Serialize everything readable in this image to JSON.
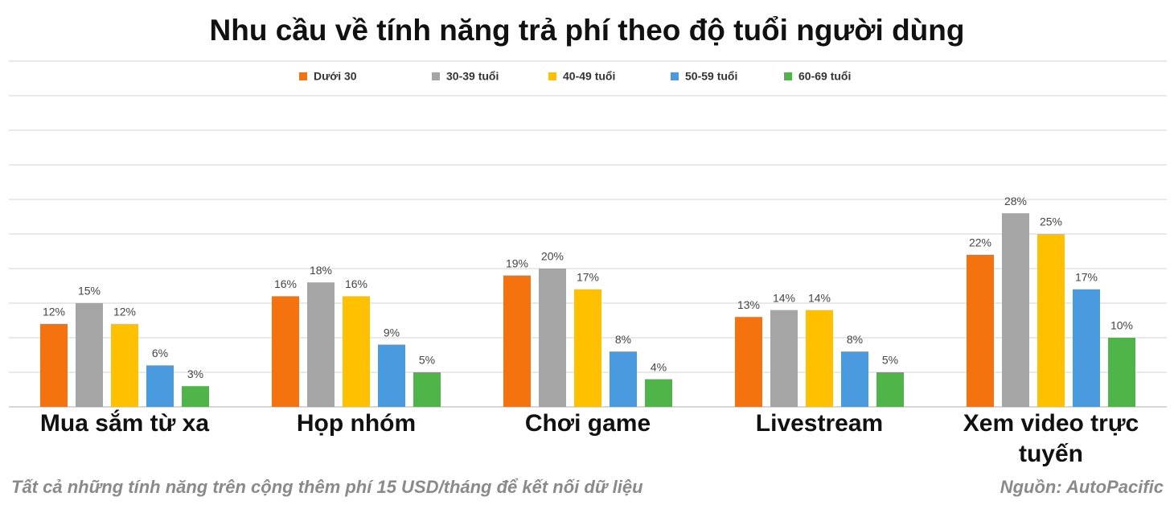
{
  "chart_data": {
    "type": "bar",
    "title": "Nhu cầu về tính năng trả phí theo độ tuổi người dùng",
    "categories": [
      "Mua sắm từ xa",
      "Họp nhóm",
      "Chơi game",
      "Livestream",
      "Xem video trực tuyến"
    ],
    "series": [
      {
        "name": "Dưới 30",
        "color": "#f4730f",
        "values": [
          12,
          16,
          19,
          13,
          22
        ],
        "value_labels": [
          "12%",
          "16%",
          "19%",
          "13%",
          "22%"
        ]
      },
      {
        "name": "30-39 tuổi",
        "color": "#a5a5a5",
        "values": [
          15,
          18,
          20,
          14,
          28
        ],
        "value_labels": [
          "15%",
          "18%",
          "20%",
          "14%",
          "28%"
        ]
      },
      {
        "name": "40-49 tuổi",
        "color": "#ffc000",
        "values": [
          12,
          16,
          17,
          14,
          25
        ],
        "value_labels": [
          "12%",
          "16%",
          "17%",
          "14%",
          "25%"
        ]
      },
      {
        "name": "50-59 tuổi",
        "color": "#4a9ae0",
        "values": [
          6,
          9,
          8,
          8,
          17
        ],
        "value_labels": [
          "6%",
          "9%",
          "8%",
          "8%",
          "17%"
        ]
      },
      {
        "name": "60-69 tuổi",
        "color": "#4fb548",
        "values": [
          3,
          5,
          4,
          5,
          10
        ],
        "value_labels": [
          "3%",
          "5%",
          "4%",
          "5%",
          "10%"
        ]
      }
    ],
    "ylim": [
      0,
      50
    ],
    "yticks": [
      0,
      5,
      10,
      15,
      20,
      25,
      30,
      35,
      40,
      45,
      50
    ],
    "grid": true,
    "legend": "top",
    "footnote": "Tất cả những tính năng trên cộng thêm phí 15 USD/tháng để kết nối dữ liệu",
    "source": "Nguồn: AutoPacific"
  }
}
